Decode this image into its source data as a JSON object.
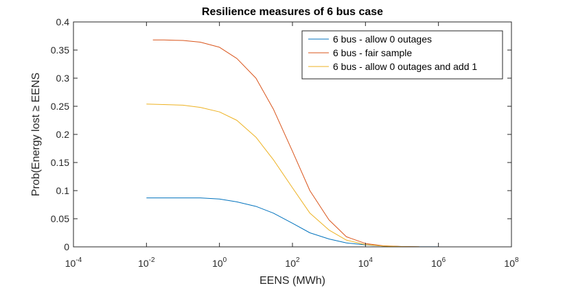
{
  "chart_data": {
    "type": "line",
    "title": "Resilience measures of 6 bus case",
    "xlabel": "EENS (MWh)",
    "ylabel": "Prob(Energy lost ≥ EENS",
    "xscale": "log",
    "xlim": [
      0.0001,
      100000000
    ],
    "ylim": [
      0,
      0.4
    ],
    "x_ticks": [
      {
        "value": 0.0001,
        "base": "10",
        "exp": "-4"
      },
      {
        "value": 0.01,
        "base": "10",
        "exp": "-2"
      },
      {
        "value": 1,
        "base": "10",
        "exp": "0"
      },
      {
        "value": 100,
        "base": "10",
        "exp": "2"
      },
      {
        "value": 10000,
        "base": "10",
        "exp": "4"
      },
      {
        "value": 1000000,
        "base": "10",
        "exp": "6"
      },
      {
        "value": 100000000,
        "base": "10",
        "exp": "8"
      }
    ],
    "y_ticks": [
      "0",
      "0.05",
      "0.1",
      "0.15",
      "0.2",
      "0.25",
      "0.3",
      "0.35",
      "0.4"
    ],
    "grid": false,
    "legend_position": "top-right",
    "series": [
      {
        "name": "6 bus - allow 0 outages",
        "color": "#0072BD",
        "x": [
          0.01,
          0.03,
          0.1,
          0.3,
          1,
          3,
          10,
          30,
          100,
          300,
          1000,
          3000,
          10000,
          30000,
          100000,
          300000,
          1000000
        ],
        "y": [
          0.087,
          0.087,
          0.087,
          0.087,
          0.085,
          0.08,
          0.072,
          0.06,
          0.042,
          0.025,
          0.014,
          0.007,
          0.0035,
          0.0015,
          0.0006,
          0.0002,
          0.0001
        ]
      },
      {
        "name": "6 bus - fair sample",
        "color": "#D95319",
        "x": [
          0.015,
          0.03,
          0.1,
          0.3,
          1,
          3,
          10,
          30,
          100,
          300,
          1000,
          3000,
          10000,
          30000,
          100000,
          300000
        ],
        "y": [
          0.368,
          0.368,
          0.367,
          0.364,
          0.355,
          0.335,
          0.3,
          0.245,
          0.17,
          0.1,
          0.048,
          0.018,
          0.006,
          0.002,
          0.0006,
          0.0001
        ]
      },
      {
        "name": "6 bus - allow 0 outages and add 1",
        "color": "#EDB120",
        "x": [
          0.01,
          0.03,
          0.1,
          0.3,
          1,
          3,
          10,
          30,
          100,
          300,
          1000,
          3000,
          10000,
          30000,
          100000,
          300000
        ],
        "y": [
          0.254,
          0.253,
          0.252,
          0.248,
          0.24,
          0.225,
          0.195,
          0.155,
          0.105,
          0.06,
          0.03,
          0.012,
          0.004,
          0.0015,
          0.0005,
          0.0001
        ]
      }
    ]
  }
}
